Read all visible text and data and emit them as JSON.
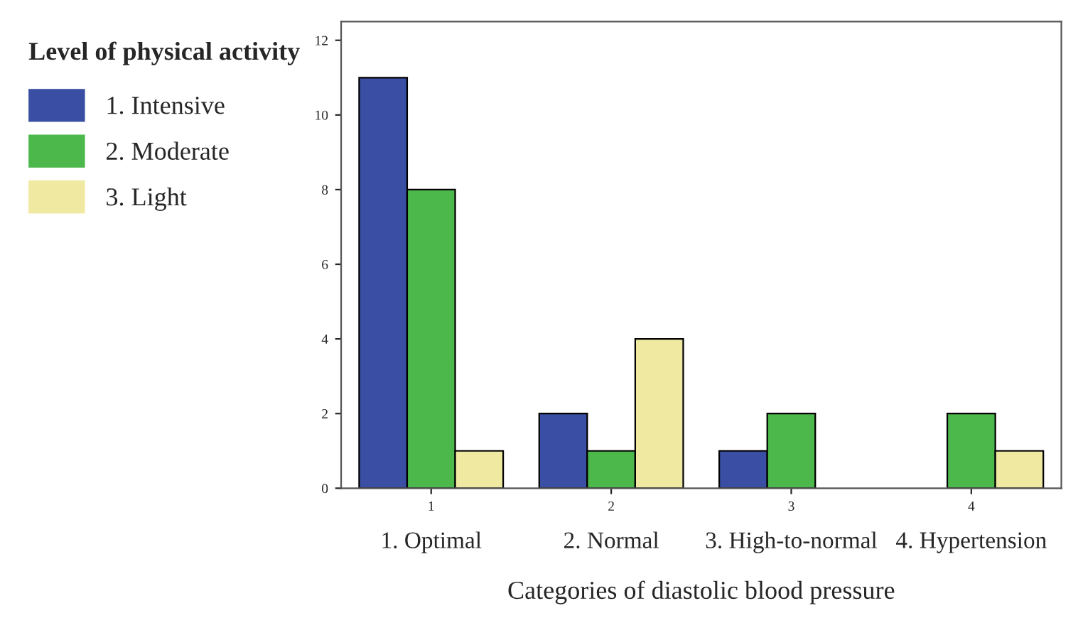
{
  "chart_data": {
    "type": "bar",
    "categories": [
      "1",
      "2",
      "3",
      "4"
    ],
    "series": [
      {
        "name": "1. Intensive",
        "color": "#3a4ea3",
        "values": [
          11,
          2,
          1,
          null
        ]
      },
      {
        "name": "2. Moderate",
        "color": "#4cb84c",
        "values": [
          8,
          1,
          2,
          2
        ]
      },
      {
        "name": "3. Light",
        "color": "#efe9a2",
        "values": [
          1,
          4,
          null,
          1
        ]
      }
    ],
    "ylim": [
      0,
      12.5
    ],
    "yticks": [
      0,
      2,
      4,
      6,
      8,
      10,
      12
    ],
    "xlabel": "Categories of diastolic blood pressure",
    "legend_title": "Level of physical activity",
    "legend": "left",
    "grid": false,
    "annotations": [
      "1. Optimal",
      "2. Normal",
      "3. High-to-normal",
      "4. Hypertension"
    ]
  }
}
